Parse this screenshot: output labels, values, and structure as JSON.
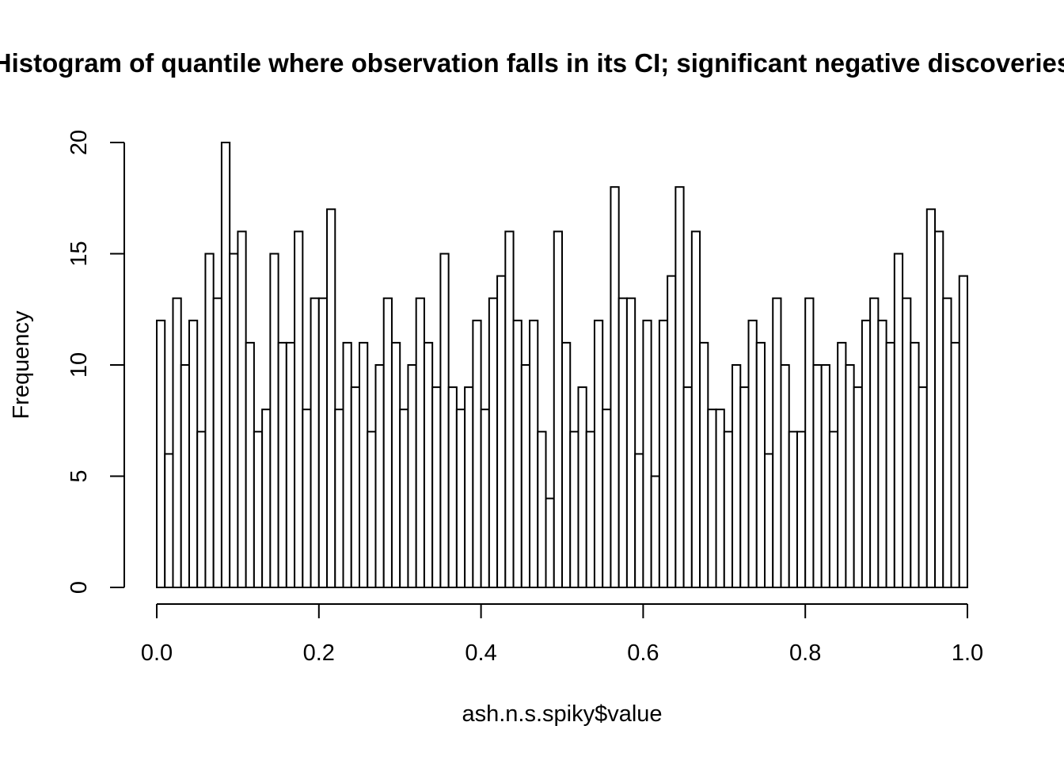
{
  "chart_data": {
    "type": "bar",
    "title": "Histogram of quantile where observation falls in its CI; significant negative discoveries",
    "xlabel": "ash.n.s.spiky$value",
    "ylabel": "Frequency",
    "xlim": [
      0,
      1
    ],
    "ylim": [
      0,
      20
    ],
    "bin_width": 0.01,
    "x_ticks": [
      "0.0",
      "0.2",
      "0.4",
      "0.6",
      "0.8",
      "1.0"
    ],
    "y_ticks": [
      "0",
      "5",
      "10",
      "15",
      "20"
    ],
    "grid": false,
    "values": [
      12,
      6,
      13,
      10,
      12,
      7,
      15,
      13,
      20,
      15,
      16,
      11,
      7,
      8,
      15,
      11,
      11,
      16,
      8,
      13,
      13,
      17,
      8,
      11,
      9,
      11,
      7,
      10,
      13,
      11,
      8,
      10,
      13,
      11,
      9,
      15,
      9,
      8,
      9,
      12,
      8,
      13,
      14,
      16,
      12,
      10,
      12,
      7,
      4,
      16,
      11,
      7,
      9,
      7,
      12,
      8,
      18,
      13,
      13,
      6,
      12,
      5,
      12,
      14,
      18,
      9,
      16,
      11,
      8,
      8,
      7,
      10,
      9,
      12,
      11,
      6,
      13,
      10,
      7,
      7,
      13,
      10,
      10,
      7,
      11,
      10,
      9,
      12,
      13,
      12,
      11,
      15,
      13,
      11,
      9,
      17,
      16,
      13,
      11,
      14
    ]
  }
}
